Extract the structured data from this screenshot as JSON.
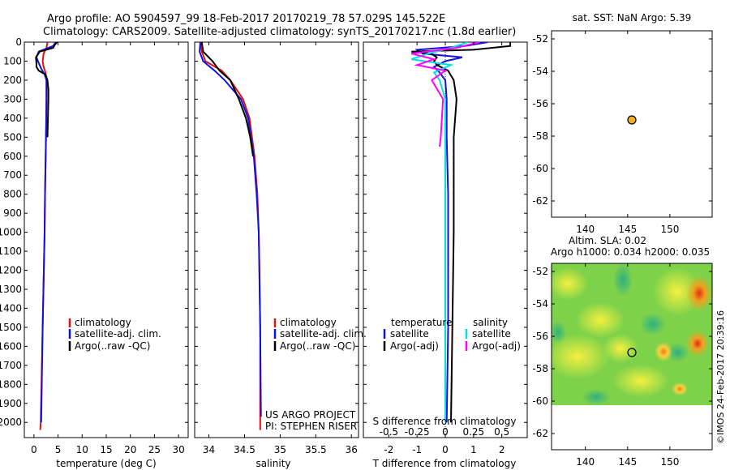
{
  "title_line1": "Argo profile: AO 5904597_99 18-Feb-2017 20170219_78 57.029S 145.522E",
  "title_line2": "Climatology: CARS2009. Satellite-adjusted climatology: synTS_20170217.nc (1.8d earlier)",
  "watermark": "©IMOS 24-Feb-2017 20:39:16",
  "colors": {
    "climatology": "#e01010",
    "satellite": "#1010e0",
    "argo": "#000000",
    "cyan": "#00e0e0",
    "magenta": "#ff00ff",
    "marker": "#f0b020"
  },
  "chart_data": [
    {
      "id": "temperature",
      "type": "line",
      "xlabel": "temperature (deg C)",
      "ylabel": "",
      "xlim": [
        -2,
        32
      ],
      "ylim": [
        2080,
        0
      ],
      "xticks": [
        0,
        5,
        10,
        15,
        20,
        25,
        30
      ],
      "yticks": [
        0,
        100,
        200,
        300,
        400,
        500,
        600,
        700,
        800,
        900,
        1000,
        1100,
        1200,
        1300,
        1400,
        1500,
        1600,
        1700,
        1800,
        1900,
        2000
      ],
      "legend": [
        "climatology",
        "satellite-adj. clim.",
        "Argo(..raw -QC)"
      ],
      "series": [
        {
          "name": "climatology",
          "color": "#e01010",
          "depth": [
            0,
            30,
            60,
            100,
            130,
            160,
            200,
            300,
            500,
            800,
            1000,
            1500,
            2000,
            2040
          ],
          "values": [
            2.8,
            2.6,
            2.0,
            1.8,
            2.0,
            2.4,
            2.6,
            2.6,
            2.5,
            2.3,
            2.2,
            1.8,
            1.4,
            1.3
          ]
        },
        {
          "name": "satellite-adj. clim.",
          "color": "#1010e0",
          "depth": [
            0,
            20,
            50,
            80,
            110,
            140,
            170,
            200,
            300,
            500,
            800,
            1000,
            1500,
            2000
          ],
          "values": [
            4.5,
            4.0,
            1.0,
            0.5,
            1.0,
            1.5,
            2.2,
            2.6,
            2.6,
            2.5,
            2.3,
            2.2,
            1.8,
            1.5
          ]
        },
        {
          "name": "Argo(..raw -QC)",
          "color": "#000000",
          "depth": [
            0,
            15,
            30,
            50,
            80,
            110,
            130,
            150,
            170,
            200,
            250,
            300,
            400,
            500
          ],
          "values": [
            4.8,
            4.3,
            4.0,
            1.2,
            0.4,
            0.5,
            0.5,
            1.0,
            2.4,
            2.8,
            3.0,
            3.0,
            2.9,
            2.8
          ]
        }
      ]
    },
    {
      "id": "salinity",
      "type": "line",
      "xlabel": "salinity",
      "ylabel": "",
      "xlim": [
        33.8,
        36.1
      ],
      "ylim": [
        2080,
        0
      ],
      "xticks": [
        34,
        34.5,
        35,
        35.5,
        36
      ],
      "xticklabels": [
        "34",
        "34.5",
        "35",
        "35.5",
        "36"
      ],
      "yticks": [],
      "legend": [
        "climatology",
        "satellite-adj. clim.",
        "Argo(..raw -QC)"
      ],
      "annotations": [
        "US ARGO PROJECT",
        "PI: STEPHEN RISER"
      ],
      "series": [
        {
          "name": "climatology",
          "color": "#e01010",
          "depth": [
            0,
            50,
            100,
            150,
            200,
            300,
            400,
            600,
            800,
            1000,
            1200,
            1500,
            2000,
            2040
          ],
          "values": [
            33.88,
            33.9,
            33.95,
            34.18,
            34.3,
            34.48,
            34.57,
            34.64,
            34.68,
            34.7,
            34.71,
            34.72,
            34.72,
            34.72
          ]
        },
        {
          "name": "satellite-adj. clim.",
          "color": "#1010e0",
          "depth": [
            0,
            50,
            100,
            150,
            200,
            300,
            400,
            600,
            800,
            1000,
            1500,
            1970
          ],
          "values": [
            33.88,
            33.87,
            33.92,
            34.08,
            34.22,
            34.45,
            34.55,
            34.63,
            34.67,
            34.7,
            34.72,
            34.73
          ]
        },
        {
          "name": "Argo(..raw -QC)",
          "color": "#000000",
          "depth": [
            0,
            50,
            100,
            150,
            200,
            300,
            400,
            500,
            600
          ],
          "values": [
            33.9,
            33.92,
            34.05,
            34.15,
            34.3,
            34.42,
            34.52,
            34.58,
            34.62
          ]
        }
      ]
    },
    {
      "id": "difference",
      "type": "line",
      "xlabel": "T difference from climatology",
      "xlabel_top": "S difference from climatology",
      "xlim": [
        -2.9,
        2.9
      ],
      "ylim": [
        2080,
        0
      ],
      "xticks": [
        -2,
        -1,
        0,
        1,
        2
      ],
      "xticks_S": [
        -0.5,
        -0.25,
        0,
        0.25,
        0.5
      ],
      "xticklabels_S": [
        "-0.5",
        "-0.25",
        "0",
        "0.25",
        "0.5"
      ],
      "legend_temperature_title": "temperature",
      "legend_salinity_title": "salinity",
      "legend_items": [
        "satellite",
        "Argo(-adj)",
        "satellite",
        "Argo(-adj)"
      ],
      "series": [
        {
          "name": "temperature satellite",
          "color": "#1010e0",
          "depth": [
            0,
            20,
            40,
            60,
            80,
            100,
            130,
            160,
            200,
            300,
            500,
            800,
            1000,
            1500,
            2000
          ],
          "values": [
            1.5,
            0.7,
            -1.0,
            -0.8,
            0.6,
            0.0,
            -0.4,
            -0.2,
            0.0,
            0.05,
            0.05,
            0.1,
            0.1,
            0.1,
            0.05
          ]
        },
        {
          "name": "temperature Argo(-adj)",
          "color": "#000000",
          "depth": [
            0,
            20,
            40,
            50,
            60,
            80,
            100,
            120,
            150,
            200,
            300,
            500,
            700,
            1000,
            1500,
            2000
          ],
          "values": [
            2.3,
            2.3,
            1.0,
            -1.2,
            -0.5,
            -0.3,
            -0.4,
            -0.3,
            0.1,
            0.3,
            0.4,
            0.3,
            0.3,
            0.3,
            0.25,
            0.2
          ]
        },
        {
          "name": "salinity satellite",
          "color": "#00e0e0",
          "depth": [
            0,
            30,
            60,
            90,
            120,
            160,
            200,
            300,
            500,
            700,
            1000,
            1500,
            2000
          ],
          "values": [
            0.2,
            0.05,
            -0.15,
            -0.3,
            0.05,
            -0.1,
            -0.05,
            0.0,
            0.0,
            0.0,
            0.0,
            0.0,
            0.0
          ]
        },
        {
          "name": "salinity Argo(-adj)",
          "color": "#ff00ff",
          "depth": [
            0,
            30,
            60,
            90,
            120,
            150,
            200,
            300,
            400,
            500,
            550
          ],
          "values": [
            0.3,
            0.1,
            -0.3,
            -0.1,
            -0.25,
            0.0,
            -0.12,
            -0.02,
            -0.03,
            -0.04,
            -0.05
          ]
        }
      ]
    },
    {
      "id": "position_sst",
      "type": "scatter",
      "title": "sat. SST: NaN Argo: 5.39",
      "xlim": [
        136,
        155
      ],
      "ylim": [
        -63,
        -51.5
      ],
      "xticks": [
        140,
        145,
        150
      ],
      "yticks": [
        -52,
        -54,
        -56,
        -58,
        -60,
        -62
      ],
      "points": [
        {
          "x": 145.5,
          "y": -57.0
        }
      ]
    },
    {
      "id": "position_sla",
      "type": "heatmap",
      "title": "Altim. SLA: 0.02",
      "subtitle": "Argo h1000: 0.034 h2000: 0.035",
      "xlim": [
        136,
        155
      ],
      "ylim": [
        -63,
        -51.5
      ],
      "xticks": [
        140,
        145,
        150
      ],
      "yticks": [
        -52,
        -54,
        -56,
        -58,
        -60,
        -62
      ],
      "data_extent_lat": [
        -60,
        -51.5
      ],
      "points": [
        {
          "x": 145.5,
          "y": -57.0
        }
      ]
    }
  ]
}
